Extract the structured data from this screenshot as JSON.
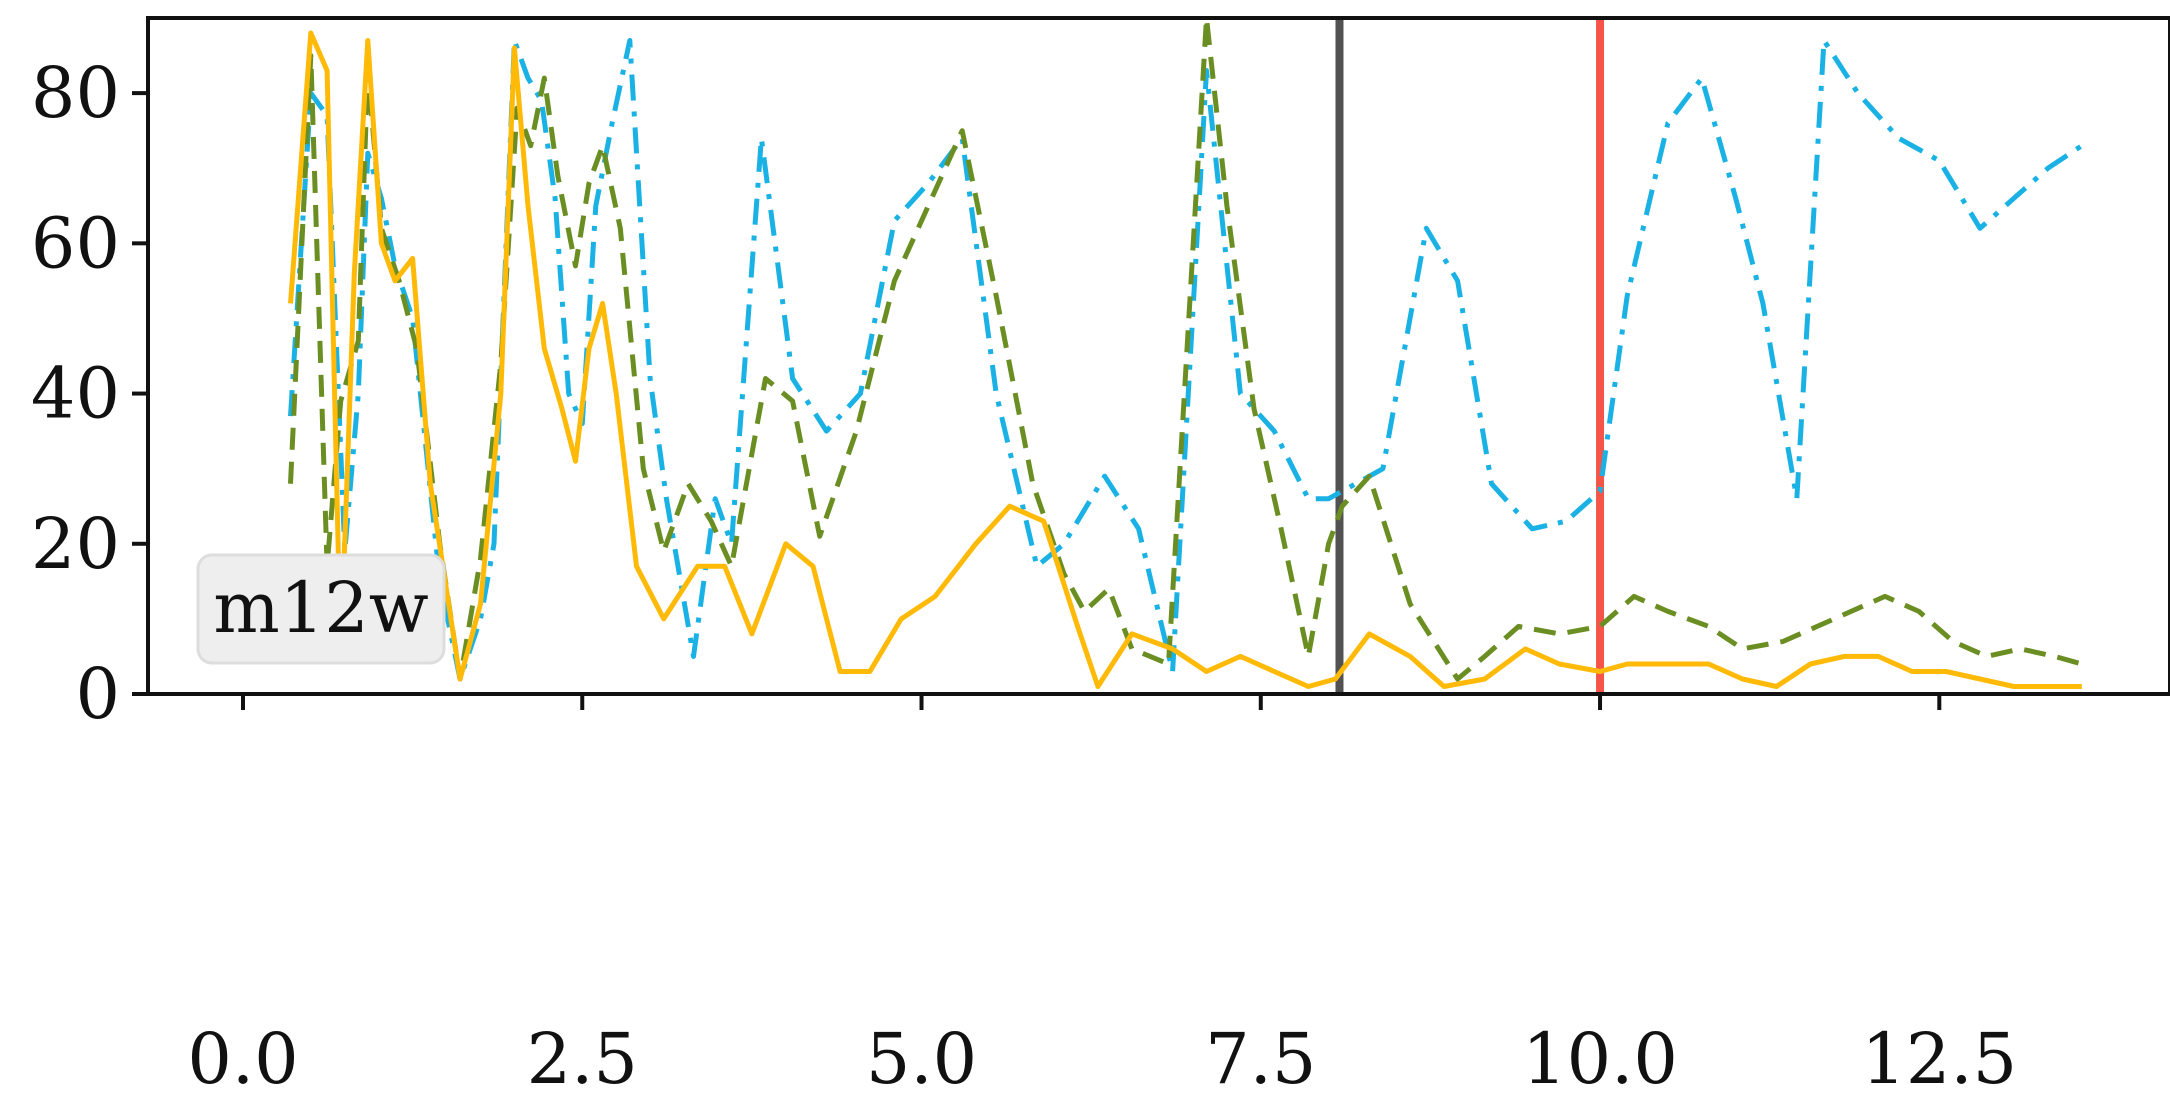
{
  "chart_data": {
    "type": "line",
    "xlim": [
      -0.7,
      14.2
    ],
    "ylim": [
      0,
      90
    ],
    "xticks": [
      {
        "value": 0.0,
        "label": "0.0"
      },
      {
        "value": 2.5,
        "label": "2.5"
      },
      {
        "value": 5.0,
        "label": "5.0"
      },
      {
        "value": 7.5,
        "label": "7.5"
      },
      {
        "value": 10.0,
        "label": "10.0"
      },
      {
        "value": 12.5,
        "label": "12.5"
      }
    ],
    "yticks": [
      {
        "value": 0,
        "label": "0"
      },
      {
        "value": 20,
        "label": "20"
      },
      {
        "value": 40,
        "label": "40"
      },
      {
        "value": 60,
        "label": "60"
      },
      {
        "value": 80,
        "label": "80"
      }
    ],
    "legend_text": "m12w",
    "legend_placement": "lower-left",
    "grid": false,
    "vlines": [
      {
        "x": 8.08,
        "color": "#404040"
      },
      {
        "x": 10.0,
        "color": "#f44336"
      }
    ],
    "series": [
      {
        "style": "dashdot",
        "color": "#1ab2e5",
        "points": [
          [
            0.35,
            37
          ],
          [
            0.5,
            80
          ],
          [
            0.62,
            77
          ],
          [
            0.75,
            19
          ],
          [
            0.85,
            40
          ],
          [
            0.92,
            72
          ],
          [
            1.02,
            66
          ],
          [
            1.12,
            57
          ],
          [
            1.25,
            50
          ],
          [
            1.45,
            15
          ],
          [
            1.6,
            2
          ],
          [
            1.75,
            10
          ],
          [
            1.85,
            20
          ],
          [
            2.0,
            87
          ],
          [
            2.1,
            82
          ],
          [
            2.2,
            79
          ],
          [
            2.3,
            66
          ],
          [
            2.4,
            40
          ],
          [
            2.5,
            36
          ],
          [
            2.6,
            65
          ],
          [
            2.72,
            76
          ],
          [
            2.85,
            87
          ],
          [
            3.0,
            42
          ],
          [
            3.12,
            26
          ],
          [
            3.32,
            5
          ],
          [
            3.48,
            26
          ],
          [
            3.6,
            20
          ],
          [
            3.82,
            74
          ],
          [
            4.05,
            42
          ],
          [
            4.3,
            35
          ],
          [
            4.55,
            40
          ],
          [
            4.8,
            63
          ],
          [
            5.05,
            68
          ],
          [
            5.3,
            74
          ],
          [
            5.55,
            40
          ],
          [
            5.85,
            17
          ],
          [
            6.05,
            20
          ],
          [
            6.35,
            29
          ],
          [
            6.6,
            22
          ],
          [
            6.85,
            3
          ],
          [
            7.1,
            83
          ],
          [
            7.35,
            40
          ],
          [
            7.6,
            35
          ],
          [
            7.85,
            26
          ],
          [
            8.0,
            26
          ],
          [
            8.4,
            30
          ],
          [
            8.72,
            62
          ],
          [
            8.95,
            55
          ],
          [
            9.2,
            28
          ],
          [
            9.5,
            22
          ],
          [
            9.75,
            23
          ],
          [
            10.0,
            27
          ],
          [
            10.2,
            53
          ],
          [
            10.5,
            76
          ],
          [
            10.75,
            82
          ],
          [
            11.0,
            66
          ],
          [
            11.2,
            52
          ],
          [
            11.45,
            26
          ],
          [
            11.65,
            87
          ],
          [
            11.9,
            80
          ],
          [
            12.2,
            74
          ],
          [
            12.5,
            71
          ],
          [
            12.8,
            62
          ],
          [
            13.05,
            66
          ],
          [
            13.3,
            70
          ],
          [
            13.55,
            73
          ]
        ]
      },
      {
        "style": "dashed",
        "color": "#6b8e23",
        "points": [
          [
            0.35,
            28
          ],
          [
            0.5,
            85
          ],
          [
            0.62,
            17
          ],
          [
            0.72,
            39
          ],
          [
            0.85,
            47
          ],
          [
            0.92,
            83
          ],
          [
            1.02,
            62
          ],
          [
            1.15,
            55
          ],
          [
            1.28,
            46
          ],
          [
            1.45,
            20
          ],
          [
            1.6,
            2
          ],
          [
            1.75,
            18
          ],
          [
            1.9,
            44
          ],
          [
            2.02,
            78
          ],
          [
            2.12,
            73
          ],
          [
            2.22,
            82
          ],
          [
            2.32,
            69
          ],
          [
            2.45,
            57
          ],
          [
            2.55,
            68
          ],
          [
            2.65,
            73
          ],
          [
            2.78,
            62
          ],
          [
            2.95,
            30
          ],
          [
            3.1,
            19
          ],
          [
            3.28,
            28
          ],
          [
            3.45,
            23
          ],
          [
            3.6,
            17
          ],
          [
            3.85,
            42
          ],
          [
            4.05,
            39
          ],
          [
            4.25,
            21
          ],
          [
            4.52,
            35
          ],
          [
            4.8,
            55
          ],
          [
            5.05,
            65
          ],
          [
            5.3,
            75
          ],
          [
            5.55,
            53
          ],
          [
            5.82,
            28
          ],
          [
            6.05,
            16
          ],
          [
            6.2,
            11
          ],
          [
            6.38,
            14
          ],
          [
            6.55,
            6
          ],
          [
            6.82,
            4
          ],
          [
            7.1,
            90
          ],
          [
            7.25,
            65
          ],
          [
            7.45,
            38
          ],
          [
            7.65,
            22
          ],
          [
            7.85,
            5
          ],
          [
            8.0,
            20
          ],
          [
            8.1,
            25
          ],
          [
            8.3,
            29
          ],
          [
            8.6,
            12
          ],
          [
            8.95,
            2
          ],
          [
            9.15,
            5
          ],
          [
            9.4,
            9
          ],
          [
            9.7,
            8
          ],
          [
            10.0,
            9
          ],
          [
            10.25,
            13
          ],
          [
            10.5,
            11
          ],
          [
            10.8,
            9
          ],
          [
            11.05,
            6
          ],
          [
            11.35,
            7
          ],
          [
            11.6,
            9
          ],
          [
            11.85,
            11
          ],
          [
            12.1,
            13
          ],
          [
            12.35,
            11
          ],
          [
            12.6,
            7
          ],
          [
            12.85,
            5
          ],
          [
            13.1,
            6
          ],
          [
            13.35,
            5
          ],
          [
            13.55,
            4
          ]
        ]
      },
      {
        "style": "solid",
        "color": "#ffba08",
        "points": [
          [
            0.35,
            52
          ],
          [
            0.5,
            88
          ],
          [
            0.62,
            83
          ],
          [
            0.72,
            5
          ],
          [
            0.82,
            56
          ],
          [
            0.92,
            87
          ],
          [
            1.02,
            60
          ],
          [
            1.12,
            55
          ],
          [
            1.25,
            58
          ],
          [
            1.38,
            28
          ],
          [
            1.6,
            2
          ],
          [
            1.75,
            12
          ],
          [
            1.9,
            40
          ],
          [
            2.0,
            86
          ],
          [
            2.1,
            65
          ],
          [
            2.22,
            46
          ],
          [
            2.35,
            38
          ],
          [
            2.45,
            31
          ],
          [
            2.55,
            46
          ],
          [
            2.65,
            52
          ],
          [
            2.75,
            40
          ],
          [
            2.9,
            17
          ],
          [
            3.1,
            10
          ],
          [
            3.35,
            17
          ],
          [
            3.55,
            17
          ],
          [
            3.75,
            8
          ],
          [
            4.0,
            20
          ],
          [
            4.2,
            17
          ],
          [
            4.4,
            3
          ],
          [
            4.62,
            3
          ],
          [
            4.85,
            10
          ],
          [
            5.1,
            13
          ],
          [
            5.4,
            20
          ],
          [
            5.65,
            25
          ],
          [
            5.9,
            23
          ],
          [
            6.15,
            9
          ],
          [
            6.3,
            1
          ],
          [
            6.55,
            8
          ],
          [
            6.85,
            6
          ],
          [
            7.1,
            3
          ],
          [
            7.35,
            5
          ],
          [
            7.6,
            3
          ],
          [
            7.85,
            1
          ],
          [
            8.05,
            2
          ],
          [
            8.3,
            8
          ],
          [
            8.6,
            5
          ],
          [
            8.85,
            1
          ],
          [
            9.15,
            2
          ],
          [
            9.45,
            6
          ],
          [
            9.7,
            4
          ],
          [
            10.0,
            3
          ],
          [
            10.2,
            4
          ],
          [
            10.5,
            4
          ],
          [
            10.8,
            4
          ],
          [
            11.05,
            2
          ],
          [
            11.3,
            1
          ],
          [
            11.55,
            4
          ],
          [
            11.8,
            5
          ],
          [
            12.05,
            5
          ],
          [
            12.3,
            3
          ],
          [
            12.55,
            3
          ],
          [
            12.8,
            2
          ],
          [
            13.05,
            1
          ],
          [
            13.3,
            1
          ],
          [
            13.55,
            1
          ]
        ]
      }
    ]
  }
}
